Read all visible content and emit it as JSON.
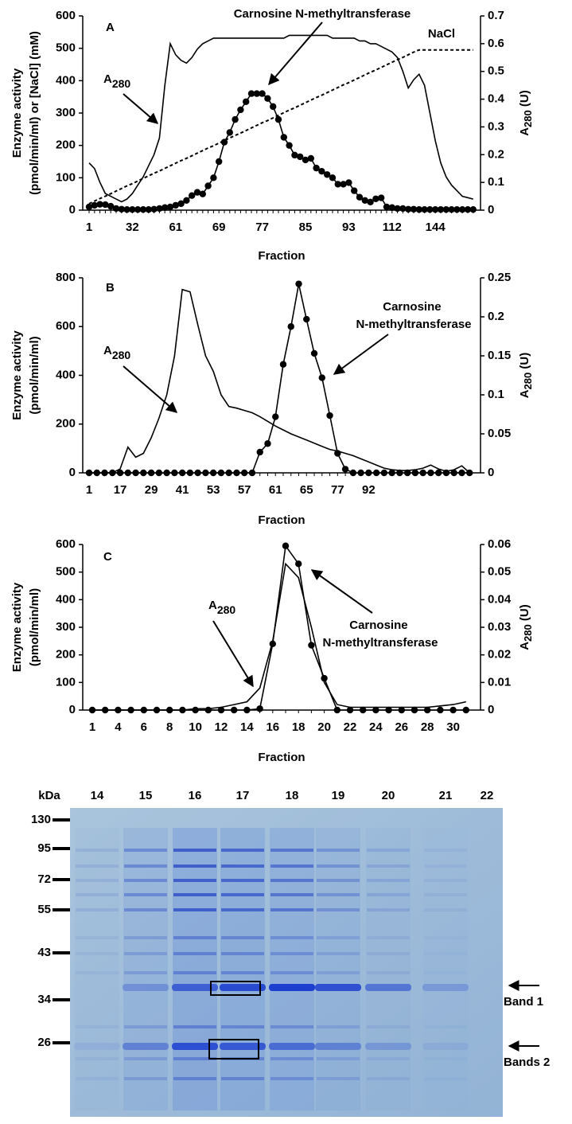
{
  "chart_data": [
    {
      "type": "line",
      "panel": "A",
      "ylabel": [
        "Enzyme activity",
        "(pmol/min/ml) or [NaCl] (mM)"
      ],
      "y2label": "A",
      "y2label_sub": "280",
      "y2label_unit": " (U)",
      "xlabel": "Fraction",
      "categories": [
        "1",
        null,
        null,
        null,
        null,
        null,
        null,
        null,
        "32",
        null,
        null,
        null,
        null,
        null,
        null,
        null,
        "61",
        null,
        null,
        null,
        null,
        null,
        null,
        null,
        "69",
        null,
        null,
        null,
        null,
        null,
        null,
        null,
        "77",
        null,
        null,
        null,
        null,
        null,
        null,
        null,
        "85",
        null,
        null,
        null,
        null,
        null,
        null,
        null,
        "93",
        null,
        null,
        null,
        null,
        null,
        null,
        null,
        "112",
        null,
        null,
        null,
        null,
        null,
        null,
        null,
        "144",
        null,
        null,
        null,
        null,
        null,
        null,
        null
      ],
      "ylim": [
        0,
        600
      ],
      "yticks": [
        0,
        100,
        200,
        300,
        400,
        500,
        600
      ],
      "y2lim": [
        0,
        0.7
      ],
      "y2ticks": [
        0,
        0.1,
        0.2,
        0.3,
        0.4,
        0.5,
        0.6,
        0.7
      ],
      "series": [
        {
          "name": "Carnosine N-methyltransferase",
          "color": "#000000",
          "marker": "circle",
          "values": [
            10,
            15,
            18,
            17,
            12,
            5,
            3,
            2,
            2,
            2,
            2,
            2,
            3,
            5,
            8,
            10,
            15,
            20,
            30,
            45,
            55,
            50,
            75,
            100,
            150,
            210,
            240,
            280,
            310,
            335,
            360,
            360,
            360,
            345,
            320,
            280,
            225,
            200,
            170,
            165,
            155,
            160,
            130,
            120,
            110,
            100,
            80,
            80,
            85,
            60,
            40,
            30,
            25,
            35,
            38,
            10,
            8,
            5,
            5,
            3,
            3,
            2,
            2,
            2,
            2,
            2,
            2,
            2,
            2,
            2,
            2,
            2
          ]
        },
        {
          "name": "A",
          "name_sub": "280",
          "color": "#000000",
          "axis": "y2",
          "values": [
            0.17,
            0.15,
            0.1,
            0.06,
            0.05,
            0.04,
            0.03,
            0.04,
            0.06,
            0.09,
            0.12,
            0.16,
            0.2,
            0.26,
            0.45,
            0.6,
            0.56,
            0.54,
            0.53,
            0.55,
            0.58,
            0.6,
            0.61,
            0.62,
            0.62,
            0.62,
            0.62,
            0.62,
            0.62,
            0.62,
            0.62,
            0.62,
            0.62,
            0.62,
            0.62,
            0.62,
            0.62,
            0.63,
            0.63,
            0.63,
            0.63,
            0.63,
            0.63,
            0.63,
            0.63,
            0.62,
            0.62,
            0.62,
            0.62,
            0.62,
            0.61,
            0.61,
            0.6,
            0.6,
            0.59,
            0.58,
            0.57,
            0.55,
            0.5,
            0.44,
            0.47,
            0.49,
            0.45,
            0.35,
            0.25,
            0.17,
            0.12,
            0.09,
            0.07,
            0.05,
            0.045,
            0.04
          ]
        },
        {
          "name": "NaCl",
          "color": "#000000",
          "linestyle": "dashed",
          "values": [
            20,
            28,
            36,
            43,
            51,
            59,
            67,
            75,
            82,
            90,
            98,
            106,
            114,
            121,
            129,
            137,
            145,
            153,
            160,
            168,
            176,
            184,
            192,
            199,
            207,
            215,
            223,
            231,
            238,
            246,
            254,
            262,
            270,
            277,
            285,
            293,
            301,
            309,
            316,
            324,
            332,
            340,
            348,
            355,
            363,
            371,
            379,
            387,
            394,
            402,
            410,
            418,
            426,
            433,
            441,
            449,
            457,
            465,
            472,
            480,
            488,
            495,
            495,
            495,
            495,
            495,
            495,
            495,
            495,
            495,
            495,
            495
          ]
        }
      ]
    },
    {
      "type": "line",
      "panel": "B",
      "ylabel": [
        "Enzyme activity",
        "(pmol/min/ml)"
      ],
      "y2label": "A",
      "y2label_sub": "280",
      "y2label_unit": " (U)",
      "xlabel": "Fraction",
      "categories": [
        "1",
        null,
        null,
        null,
        "17",
        null,
        null,
        null,
        "29",
        null,
        null,
        null,
        "41",
        null,
        null,
        null,
        "53",
        null,
        null,
        null,
        "57",
        null,
        null,
        null,
        "61",
        null,
        null,
        null,
        "65",
        null,
        null,
        null,
        "77",
        null,
        null,
        null,
        "92",
        null,
        null,
        null,
        null,
        null,
        null,
        null,
        null,
        null,
        null,
        null,
        null,
        null
      ],
      "ylim": [
        0,
        800
      ],
      "yticks": [
        0,
        200,
        400,
        600,
        800
      ],
      "y2lim": [
        0,
        0.25
      ],
      "y2ticks": [
        0,
        0.05,
        0.1,
        0.15,
        0.2,
        0.25
      ],
      "series": [
        {
          "name": "Carnosine N-methyltransferase",
          "color": "#000000",
          "marker": "circle",
          "values": [
            0,
            0,
            0,
            0,
            0,
            0,
            0,
            0,
            0,
            0,
            0,
            0,
            0,
            0,
            0,
            0,
            0,
            0,
            0,
            0,
            0,
            0,
            85,
            120,
            230,
            445,
            600,
            775,
            630,
            490,
            390,
            235,
            80,
            15,
            0,
            0,
            0,
            0,
            0,
            0,
            0,
            0,
            0,
            0,
            0,
            0,
            0,
            0,
            0,
            0
          ]
        },
        {
          "name": "A",
          "name_sub": "280",
          "color": "#000000",
          "axis": "y2",
          "values": [
            0,
            0,
            0,
            0,
            0.005,
            0.033,
            0.02,
            0.025,
            0.045,
            0.07,
            0.1,
            0.15,
            0.235,
            0.232,
            0.19,
            0.15,
            0.13,
            0.1,
            0.085,
            0.083,
            0.08,
            0.077,
            0.072,
            0.066,
            0.06,
            0.055,
            0.05,
            0.046,
            0.042,
            0.038,
            0.034,
            0.03,
            0.028,
            0.025,
            0.022,
            0.018,
            0.014,
            0.01,
            0.006,
            0.004,
            0.003,
            0.003,
            0.004,
            0.006,
            0.01,
            0.005,
            0.002,
            0.004,
            0.009,
            0
          ]
        }
      ]
    },
    {
      "type": "line",
      "panel": "C",
      "ylabel": [
        "Enzyme activity",
        "(pmol/min/ml)"
      ],
      "y2label": "A",
      "y2label_sub": "280",
      "y2label_unit": " (U)",
      "xlabel": "Fraction",
      "categories": [
        "1",
        null,
        "4",
        null,
        "6",
        null,
        "8",
        null,
        "10",
        null,
        "12",
        null,
        "14",
        null,
        "16",
        null,
        "18",
        null,
        "20",
        null,
        "22",
        null,
        "24",
        null,
        "26",
        null,
        "28",
        null,
        "30",
        null
      ],
      "ylim": [
        0,
        600
      ],
      "yticks": [
        0,
        100,
        200,
        300,
        400,
        500,
        600
      ],
      "y2lim": [
        0,
        0.06
      ],
      "y2ticks": [
        0,
        0.01,
        0.02,
        0.03,
        0.04,
        0.05,
        0.06
      ],
      "series": [
        {
          "name": "Carnosine N-methyltransferase",
          "color": "#000000",
          "marker": "circle",
          "values": [
            0,
            0,
            0,
            0,
            0,
            0,
            0,
            0,
            0,
            0,
            0,
            0,
            0,
            5,
            240,
            595,
            530,
            235,
            115,
            0,
            0,
            0,
            0,
            0,
            0,
            0,
            0,
            0,
            0,
            0
          ]
        },
        {
          "name": "A",
          "name_sub": "280",
          "color": "#000000",
          "axis": "y2",
          "values": [
            0,
            0,
            0,
            0,
            0,
            0,
            0,
            0,
            0.0005,
            0.0005,
            0.001,
            0.002,
            0.003,
            0.008,
            0.025,
            0.053,
            0.048,
            0.03,
            0.01,
            0.002,
            0.001,
            0.001,
            0.001,
            0.001,
            0.001,
            0.001,
            0.001,
            0.0015,
            0.002,
            0.003
          ]
        }
      ]
    }
  ],
  "gel": {
    "unit": "kDa",
    "lanes": [
      "14",
      "15",
      "16",
      "17",
      "18",
      "19",
      "20",
      "21",
      "22"
    ],
    "markers": [
      "130",
      "95",
      "72",
      "55",
      "43",
      "34",
      "26"
    ],
    "bands": [
      "Band 1",
      "Bands 2"
    ]
  }
}
